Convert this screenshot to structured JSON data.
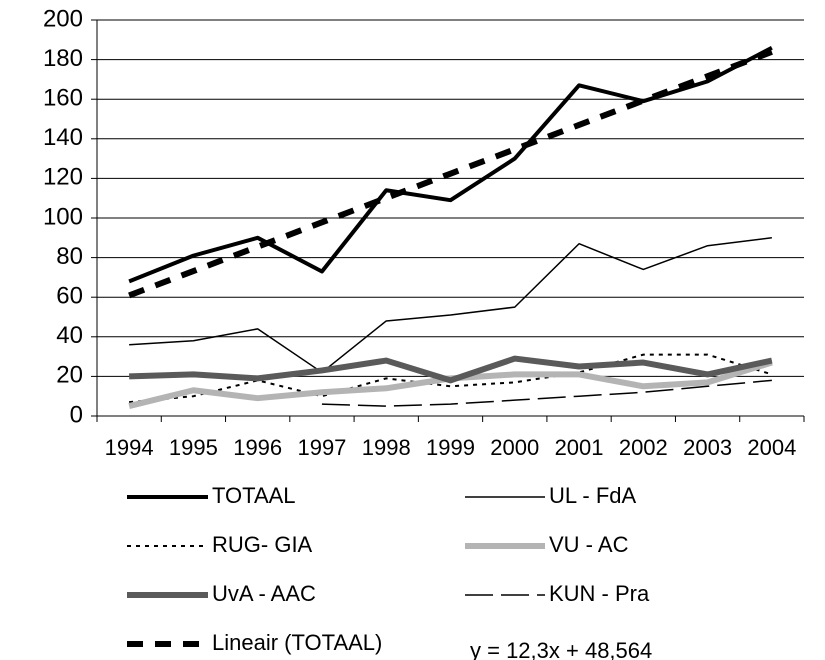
{
  "chart_data": {
    "type": "line",
    "categories": [
      "1994",
      "1995",
      "1996",
      "1997",
      "1998",
      "1999",
      "2000",
      "2001",
      "2002",
      "2003",
      "2004"
    ],
    "series": [
      {
        "name": "TOTAAL",
        "color": "#000000",
        "values": [
          68,
          81,
          90,
          73,
          114,
          109,
          130,
          167,
          159,
          169,
          186
        ]
      },
      {
        "name": "UL - FdA",
        "color": "#000000",
        "values": [
          36,
          38,
          44,
          22,
          48,
          51,
          55,
          87,
          74,
          86,
          90
        ]
      },
      {
        "name": "RUG- GIA",
        "color": "#000000",
        "values": [
          7,
          10,
          18,
          10,
          19,
          15,
          17,
          22,
          31,
          31,
          21
        ]
      },
      {
        "name": "VU - AC",
        "color": "#b4b4b4",
        "values": [
          5,
          13,
          9,
          12,
          14,
          19,
          21,
          21,
          15,
          17,
          27
        ]
      },
      {
        "name": "UvA - AAC",
        "color": "#5a5a5a",
        "values": [
          20,
          21,
          19,
          23,
          28,
          18,
          29,
          25,
          27,
          21,
          28
        ]
      },
      {
        "name": "KUN - Pra",
        "color": "#000000",
        "values": [
          null,
          null,
          null,
          6,
          5,
          6,
          8,
          10,
          12,
          15,
          18
        ]
      },
      {
        "name": "Lineair (TOTAAL)",
        "color": "#000000",
        "values": [
          60.9,
          73.2,
          85.5,
          97.8,
          110.1,
          122.4,
          134.7,
          147.0,
          159.3,
          171.6,
          183.9
        ]
      }
    ],
    "annotation": "y = 12,3x + 48,564",
    "ylim": [
      0,
      200
    ],
    "yticks": [
      0,
      20,
      40,
      60,
      80,
      100,
      120,
      140,
      160,
      180,
      200
    ],
    "grid": true
  }
}
